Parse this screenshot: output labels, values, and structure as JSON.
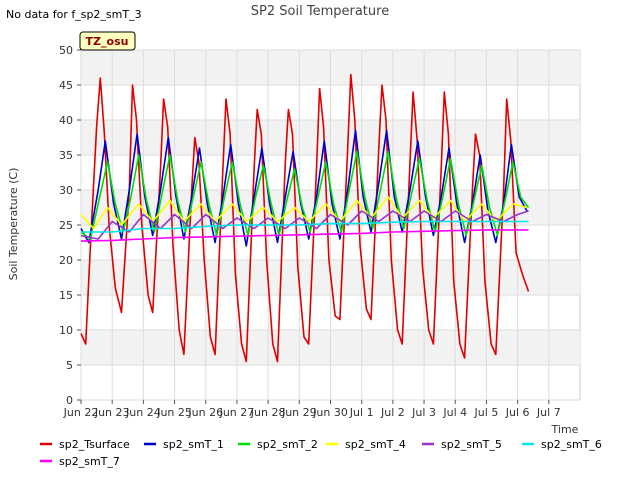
{
  "no_data_note": "No data for f_sp2_smT_3",
  "timezone_badge": "TZ_osu",
  "colors": {
    "sp2_Tsurface": "#e00000",
    "sp2_smT_1": "#0000cc",
    "sp2_smT_2": "#00dd00",
    "sp2_smT_4": "#ffff00",
    "sp2_smT_5": "#9933cc",
    "sp2_smT_6": "#00e5ee",
    "sp2_smT_7": "#ff00ff"
  },
  "chart_data": {
    "type": "line",
    "title": "SP2 Soil Temperature",
    "xlabel": "Time",
    "ylabel": "Soil Temperature (C)",
    "ylim": [
      0,
      50
    ],
    "xlim": [
      0,
      16
    ],
    "grid": true,
    "legend_placement": "bottom",
    "y_ticks": [
      0,
      5,
      10,
      15,
      20,
      25,
      30,
      35,
      40,
      45,
      50
    ],
    "x_ticks": [
      {
        "x": 0,
        "label": "Jun 22"
      },
      {
        "x": 1,
        "label": "Jun 23"
      },
      {
        "x": 2,
        "label": "Jun 24"
      },
      {
        "x": 3,
        "label": "Jun 25"
      },
      {
        "x": 4,
        "label": "Jun 26"
      },
      {
        "x": 5,
        "label": "Jun 27"
      },
      {
        "x": 6,
        "label": "Jun 28"
      },
      {
        "x": 7,
        "label": "Jun 29"
      },
      {
        "x": 8,
        "label": "Jun 30"
      },
      {
        "x": 9,
        "label": "Jul 1"
      },
      {
        "x": 10,
        "label": "Jul 2"
      },
      {
        "x": 11,
        "label": "Jul 3"
      },
      {
        "x": 12,
        "label": "Jul 4"
      },
      {
        "x": 13,
        "label": "Jul 5"
      },
      {
        "x": 14,
        "label": "Jul 6"
      },
      {
        "x": 15,
        "label": "Jul 7"
      }
    ],
    "series": [
      {
        "name": "sp2_Tsurface",
        "x": [
          0.0,
          0.15,
          0.3,
          0.5,
          0.62,
          0.75,
          0.9,
          1.1,
          1.3,
          1.55,
          1.65,
          1.78,
          1.95,
          2.15,
          2.3,
          2.55,
          2.65,
          2.78,
          2.95,
          3.15,
          3.3,
          3.55,
          3.65,
          3.78,
          3.95,
          4.15,
          4.3,
          4.55,
          4.65,
          4.78,
          4.95,
          5.15,
          5.3,
          5.55,
          5.65,
          5.78,
          5.95,
          6.15,
          6.3,
          6.55,
          6.65,
          6.78,
          6.95,
          7.15,
          7.3,
          7.55,
          7.65,
          7.78,
          7.95,
          8.15,
          8.3,
          8.55,
          8.65,
          8.78,
          8.95,
          9.15,
          9.3,
          9.55,
          9.65,
          9.78,
          9.95,
          10.15,
          10.3,
          10.55,
          10.65,
          10.78,
          10.95,
          11.15,
          11.3,
          11.55,
          11.65,
          11.78,
          11.95,
          12.15,
          12.3,
          12.55,
          12.65,
          12.78,
          12.95,
          13.15,
          13.3,
          13.55,
          13.65,
          13.78,
          13.95,
          14.15,
          14.35
        ],
        "y": [
          9.5,
          8.0,
          22.0,
          39.0,
          46.0,
          38.0,
          25.0,
          16.0,
          12.5,
          30.0,
          45.0,
          40.0,
          25.0,
          15.0,
          12.5,
          33.0,
          43.0,
          39.0,
          22.0,
          10.0,
          6.5,
          30.0,
          37.5,
          34.0,
          20.0,
          9.0,
          6.5,
          33.0,
          43.0,
          38.0,
          18.0,
          8.0,
          5.5,
          33.0,
          41.5,
          38.0,
          20.0,
          8.0,
          5.5,
          34.0,
          41.5,
          38.0,
          19.0,
          9.0,
          8.0,
          33.0,
          44.5,
          39.0,
          20.0,
          12.0,
          11.5,
          36.0,
          46.5,
          40.0,
          22.0,
          13.0,
          11.5,
          36.0,
          45.0,
          40.0,
          20.0,
          10.0,
          8.0,
          34.0,
          44.0,
          37.0,
          19.0,
          10.0,
          8.0,
          33.0,
          44.0,
          38.0,
          17.0,
          8.0,
          6.0,
          30.0,
          38.0,
          35.0,
          17.0,
          8.0,
          6.5,
          30.0,
          43.0,
          37.0,
          21.0,
          18.0,
          15.5
        ]
      },
      {
        "name": "sp2_smT_1",
        "x": [
          0.0,
          0.25,
          0.55,
          0.78,
          1.05,
          1.3,
          1.55,
          1.8,
          2.05,
          2.3,
          2.55,
          2.8,
          3.05,
          3.3,
          3.55,
          3.8,
          4.05,
          4.3,
          4.55,
          4.8,
          5.05,
          5.3,
          5.55,
          5.8,
          6.05,
          6.3,
          6.55,
          6.8,
          7.05,
          7.3,
          7.55,
          7.8,
          8.05,
          8.3,
          8.55,
          8.8,
          9.05,
          9.3,
          9.55,
          9.8,
          10.05,
          10.3,
          10.55,
          10.8,
          11.05,
          11.3,
          11.55,
          11.8,
          12.05,
          12.3,
          12.55,
          12.8,
          13.05,
          13.3,
          13.55,
          13.8,
          14.05,
          14.3
        ],
        "y": [
          24.5,
          22.5,
          30.0,
          37.0,
          28.0,
          23.0,
          30.0,
          38.0,
          29.0,
          23.5,
          30.0,
          37.5,
          29.0,
          23.0,
          29.0,
          36.0,
          28.0,
          22.5,
          29.0,
          36.5,
          28.0,
          22.0,
          29.0,
          36.0,
          28.0,
          22.5,
          29.0,
          35.5,
          28.0,
          23.0,
          29.0,
          37.0,
          28.0,
          23.0,
          30.0,
          38.5,
          29.0,
          24.0,
          31.0,
          38.5,
          29.0,
          24.0,
          30.0,
          37.0,
          29.0,
          23.5,
          29.0,
          36.0,
          28.0,
          22.5,
          28.0,
          35.0,
          27.0,
          22.5,
          28.0,
          36.5,
          29.0,
          27.0
        ]
      },
      {
        "name": "sp2_smT_2",
        "x": [
          0.0,
          0.3,
          0.6,
          0.85,
          1.1,
          1.35,
          1.6,
          1.85,
          2.1,
          2.35,
          2.6,
          2.85,
          3.1,
          3.35,
          3.6,
          3.85,
          4.1,
          4.35,
          4.6,
          4.85,
          5.1,
          5.35,
          5.6,
          5.85,
          6.1,
          6.35,
          6.6,
          6.85,
          7.1,
          7.35,
          7.6,
          7.85,
          8.1,
          8.35,
          8.6,
          8.85,
          9.1,
          9.35,
          9.6,
          9.85,
          10.1,
          10.35,
          10.6,
          10.85,
          11.1,
          11.35,
          11.6,
          11.85,
          12.1,
          12.35,
          12.6,
          12.85,
          13.1,
          13.35,
          13.6,
          13.85,
          14.1,
          14.35
        ],
        "y": [
          24.0,
          23.0,
          29.0,
          34.0,
          28.0,
          24.0,
          29.0,
          35.0,
          28.5,
          24.0,
          29.5,
          35.0,
          28.5,
          24.0,
          29.0,
          34.0,
          28.0,
          23.5,
          29.0,
          34.0,
          28.0,
          23.5,
          29.0,
          33.5,
          28.0,
          23.5,
          28.5,
          33.0,
          27.5,
          24.0,
          29.0,
          34.0,
          28.0,
          24.0,
          30.0,
          35.5,
          29.0,
          24.5,
          30.0,
          35.5,
          29.0,
          24.5,
          29.5,
          34.5,
          28.5,
          24.0,
          29.0,
          34.5,
          28.0,
          23.5,
          28.5,
          33.5,
          27.5,
          23.5,
          28.5,
          34.0,
          29.0,
          27.5
        ]
      },
      {
        "name": "sp2_smT_4",
        "x": [
          0.0,
          0.4,
          0.85,
          1.3,
          1.85,
          2.3,
          2.85,
          3.3,
          3.85,
          4.3,
          4.85,
          5.3,
          5.85,
          6.3,
          6.85,
          7.3,
          7.85,
          8.3,
          8.85,
          9.3,
          9.85,
          10.3,
          10.85,
          11.3,
          11.85,
          12.3,
          12.85,
          13.3,
          13.85,
          14.3
        ],
        "y": [
          26.5,
          24.5,
          27.5,
          25.0,
          28.0,
          25.5,
          28.5,
          25.5,
          28.0,
          25.5,
          28.0,
          25.5,
          27.5,
          25.5,
          27.5,
          25.5,
          28.0,
          25.5,
          28.5,
          26.0,
          29.0,
          26.0,
          28.5,
          26.0,
          28.5,
          25.5,
          28.0,
          25.5,
          28.0,
          27.5
        ]
      },
      {
        "name": "sp2_smT_5",
        "x": [
          0.0,
          0.55,
          1.0,
          1.55,
          2.0,
          2.55,
          3.0,
          3.55,
          4.0,
          4.55,
          5.0,
          5.55,
          6.0,
          6.55,
          7.0,
          7.55,
          8.0,
          8.55,
          9.0,
          9.55,
          10.0,
          10.55,
          11.0,
          11.55,
          12.0,
          12.55,
          13.0,
          13.55,
          14.0,
          14.35
        ],
        "y": [
          23.5,
          23.0,
          25.5,
          24.0,
          26.5,
          24.5,
          26.5,
          24.5,
          26.5,
          24.5,
          26.0,
          24.5,
          26.0,
          24.5,
          26.0,
          24.5,
          26.5,
          25.0,
          27.0,
          25.5,
          27.0,
          25.5,
          27.0,
          25.5,
          27.0,
          25.5,
          26.5,
          25.5,
          26.5,
          27.0
        ]
      },
      {
        "name": "sp2_smT_6",
        "x": [
          0.0,
          1.0,
          2.0,
          3.0,
          4.0,
          5.0,
          6.0,
          7.0,
          8.0,
          9.0,
          10.0,
          11.0,
          12.0,
          13.0,
          14.0,
          14.35
        ],
        "y": [
          24.0,
          24.0,
          24.5,
          24.5,
          24.8,
          25.0,
          25.0,
          25.0,
          25.2,
          25.2,
          25.4,
          25.5,
          25.5,
          25.5,
          25.5,
          25.5
        ]
      },
      {
        "name": "sp2_smT_7",
        "x": [
          0.0,
          1.0,
          2.0,
          3.0,
          4.0,
          5.0,
          6.0,
          7.0,
          8.0,
          9.0,
          10.0,
          11.0,
          12.0,
          13.0,
          14.0,
          14.35
        ],
        "y": [
          22.7,
          22.8,
          23.0,
          23.2,
          23.3,
          23.4,
          23.5,
          23.6,
          23.7,
          23.8,
          24.0,
          24.1,
          24.2,
          24.3,
          24.3,
          24.3
        ]
      }
    ]
  }
}
